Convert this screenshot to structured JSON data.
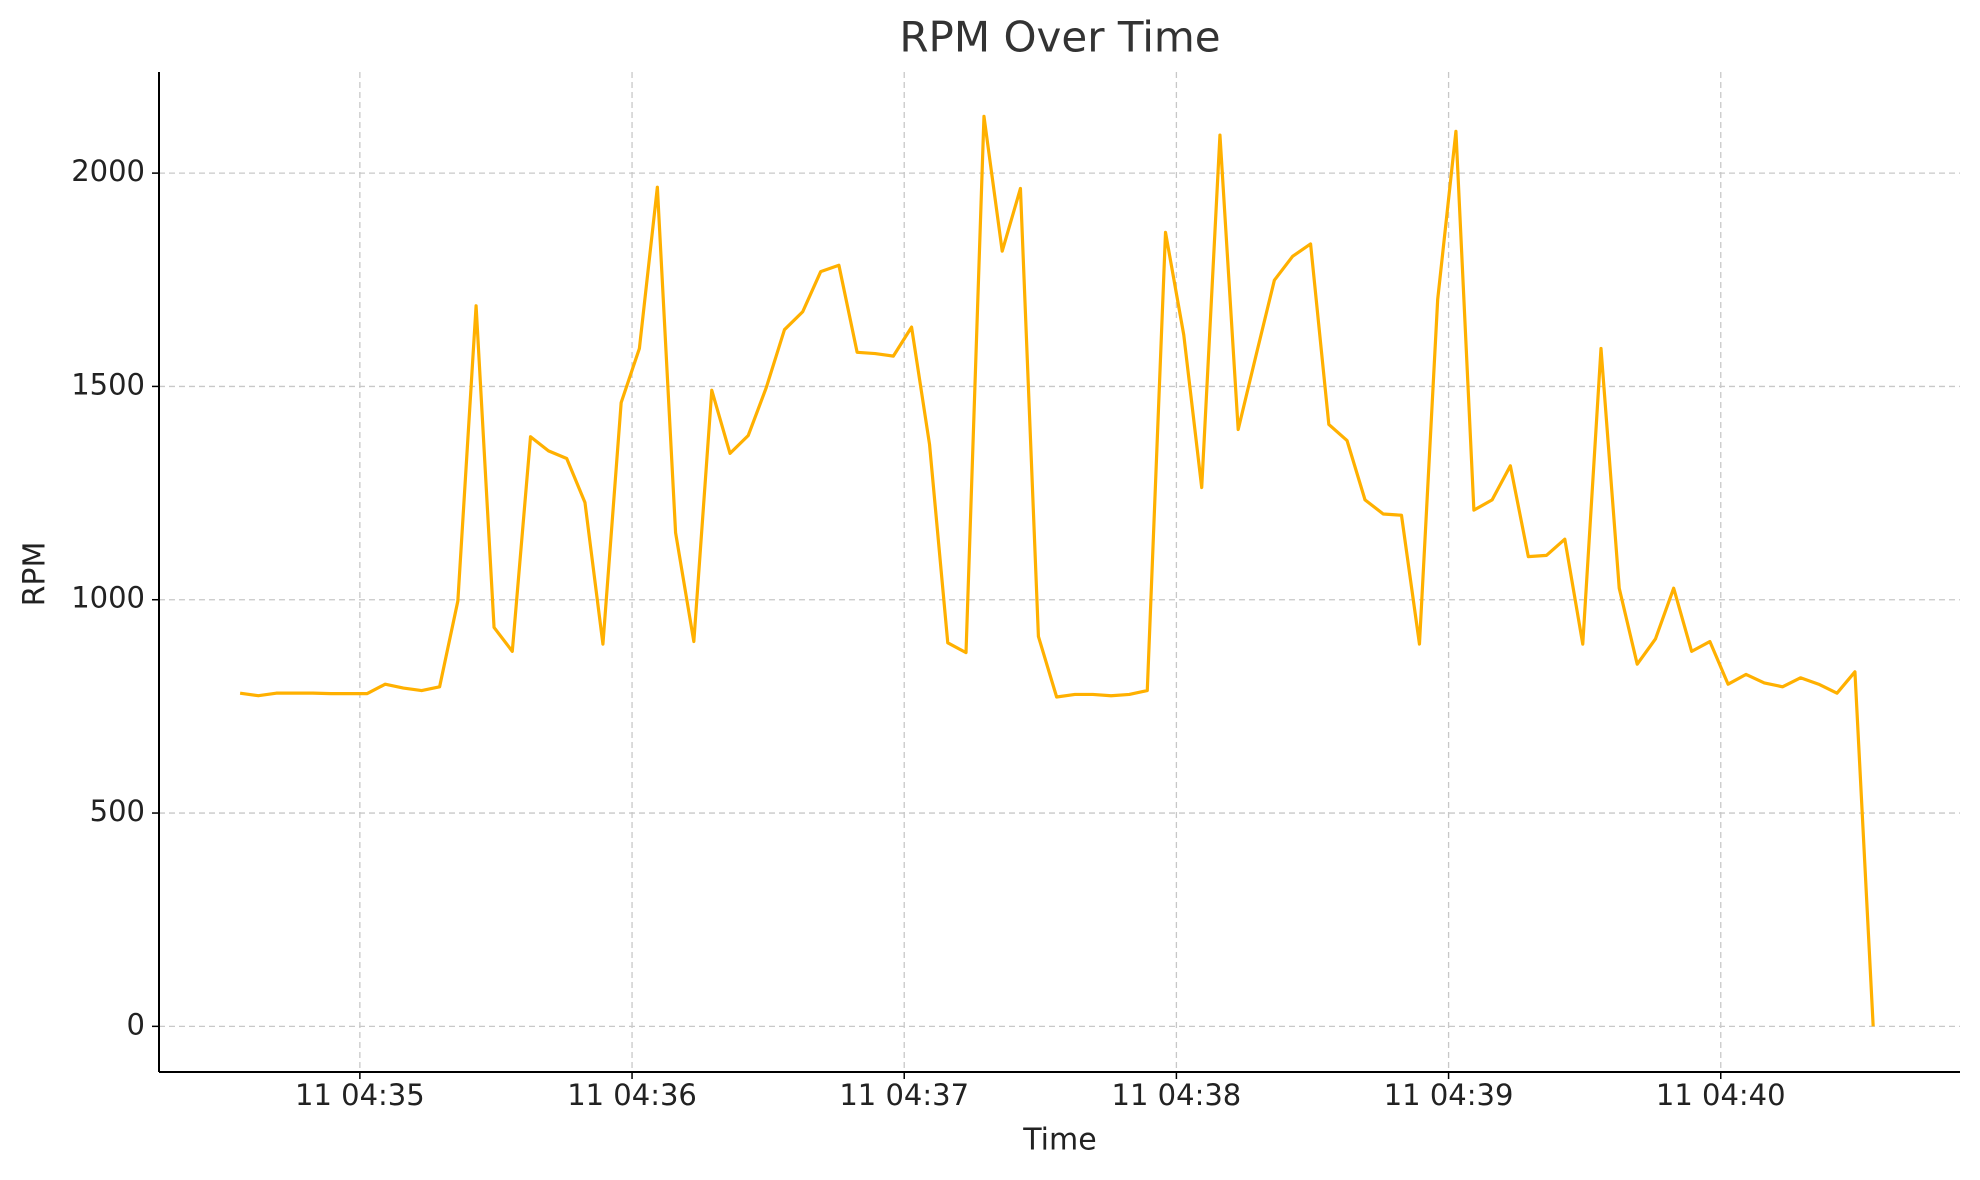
{
  "chart_data": {
    "type": "line",
    "title": "RPM Over Time",
    "x_label": "Time",
    "y_label": "RPM",
    "grid": true,
    "xlim": [
      34.262,
      40.879
    ],
    "ylim": [
      -107,
      2237
    ],
    "xticks": [
      {
        "value": 35,
        "label": "11 04:35"
      },
      {
        "value": 36,
        "label": "11 04:36"
      },
      {
        "value": 37,
        "label": "11 04:37"
      },
      {
        "value": 38,
        "label": "11 04:38"
      },
      {
        "value": 39,
        "label": "11 04:39"
      },
      {
        "value": 40,
        "label": "11 04:40"
      }
    ],
    "yticks": [
      0,
      500,
      1000,
      1500,
      2000
    ],
    "x": [
      34.56,
      34.627,
      34.693,
      34.76,
      34.827,
      34.893,
      34.96,
      35.027,
      35.093,
      35.16,
      35.227,
      35.293,
      35.36,
      35.427,
      35.493,
      35.56,
      35.627,
      35.693,
      35.76,
      35.827,
      35.893,
      35.96,
      36.027,
      36.093,
      36.16,
      36.227,
      36.293,
      36.36,
      36.427,
      36.493,
      36.56,
      36.627,
      36.693,
      36.76,
      36.827,
      36.893,
      36.96,
      37.027,
      37.093,
      37.16,
      37.227,
      37.293,
      37.36,
      37.427,
      37.493,
      37.56,
      37.627,
      37.693,
      37.76,
      37.827,
      37.893,
      37.96,
      38.027,
      38.093,
      38.16,
      38.227,
      38.293,
      38.36,
      38.427,
      38.493,
      38.56,
      38.627,
      38.693,
      38.76,
      38.827,
      38.893,
      38.96,
      39.027,
      39.093,
      39.16,
      39.227,
      39.293,
      39.36,
      39.427,
      39.493,
      39.56,
      39.627,
      39.693,
      39.76,
      39.827,
      39.893,
      39.96,
      40.027,
      40.093,
      40.16,
      40.227,
      40.293,
      40.36,
      40.427,
      40.493,
      40.56
    ],
    "series": [
      {
        "name": "RPM",
        "color": "#ffb000",
        "values": [
          781,
          775,
          781,
          781,
          781,
          780,
          780,
          780,
          802,
          793,
          787,
          796,
          997,
          1689,
          935,
          879,
          1382,
          1349,
          1331,
          1228,
          896,
          1462,
          1589,
          1967,
          1157,
          902,
          1491,
          1343,
          1385,
          1497,
          1633,
          1675,
          1769,
          1784,
          1580,
          1577,
          1571,
          1639,
          1364,
          899,
          876,
          2133,
          1817,
          1964,
          914,
          772,
          778,
          778,
          775,
          778,
          787,
          1861,
          1621,
          1263,
          2089,
          1399,
          1574,
          1749,
          1805,
          1834,
          1411,
          1373,
          1234,
          1201,
          1198,
          896,
          1704,
          2098,
          1210,
          1234,
          1314,
          1101,
          1104,
          1142,
          896,
          1589,
          1027,
          849,
          908,
          1027,
          879,
          902,
          802,
          825,
          805,
          796,
          817,
          802,
          781,
          831,
          0
        ]
      }
    ]
  }
}
